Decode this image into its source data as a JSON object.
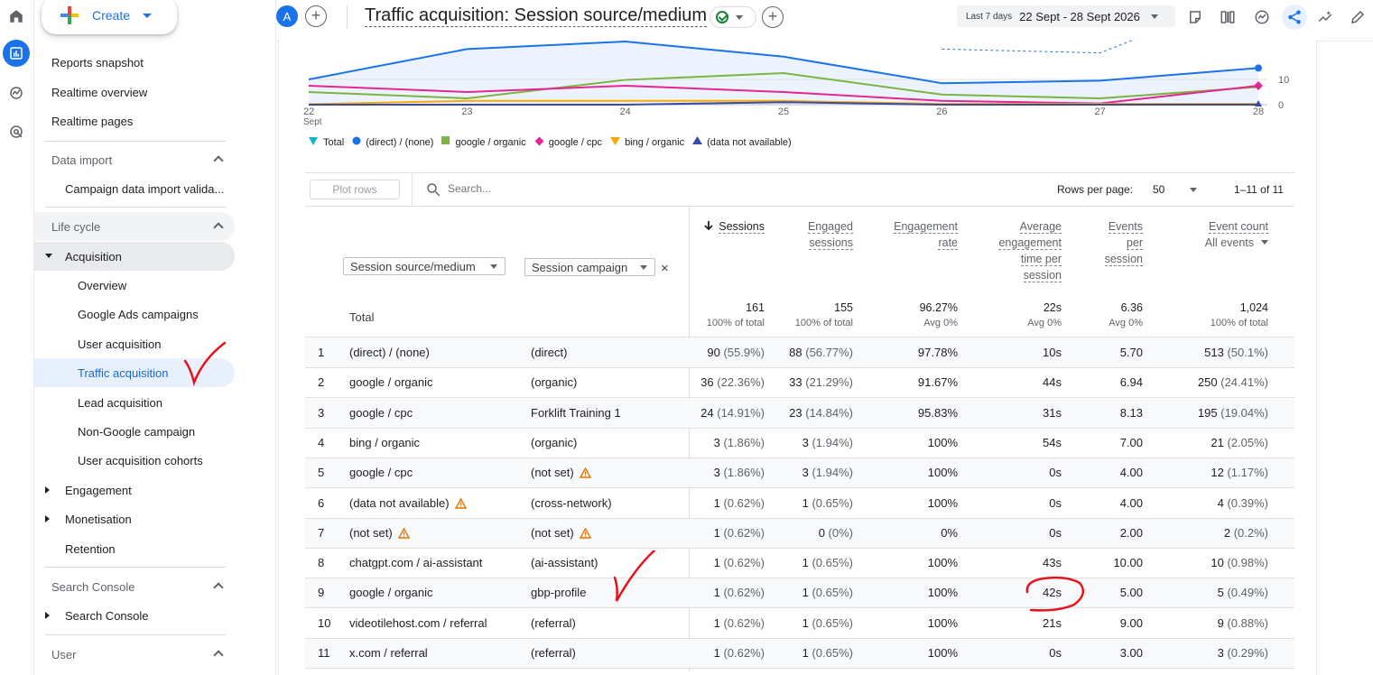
{
  "header": {
    "avatar_letter": "A",
    "title": "Traffic acquisition: Session source/medium",
    "date_small": "Last 7 days",
    "date_range": "22 Sept - 28 Sept 2026"
  },
  "sidebar": {
    "create_label": "Create",
    "items": [
      {
        "label": "Reports snapshot"
      },
      {
        "label": "Realtime overview"
      },
      {
        "label": "Realtime pages"
      },
      {
        "label": "Data import"
      },
      {
        "label": "Campaign data import valida..."
      },
      {
        "label": "Life cycle"
      },
      {
        "label": "Acquisition"
      },
      {
        "label": "Overview"
      },
      {
        "label": "Google Ads campaigns"
      },
      {
        "label": "User acquisition"
      },
      {
        "label": "Traffic acquisition"
      },
      {
        "label": "Lead acquisition"
      },
      {
        "label": "Non-Google campaign"
      },
      {
        "label": "User acquisition cohorts"
      },
      {
        "label": "Engagement"
      },
      {
        "label": "Monetisation"
      },
      {
        "label": "Retention"
      },
      {
        "label": "Search Console"
      },
      {
        "label": "Search Console"
      },
      {
        "label": "User"
      }
    ]
  },
  "chart_data": {
    "type": "line",
    "x": [
      "22 Sept",
      "23",
      "24",
      "25",
      "26",
      "27",
      "28"
    ],
    "x_tick_labels": [
      "22",
      "23",
      "24",
      "25",
      "26",
      "27",
      "28"
    ],
    "x_tick_sub": "Sept",
    "y_ticks": [
      "10",
      "0"
    ],
    "ylim": [
      0,
      40
    ],
    "series": [
      {
        "name": "Total",
        "values": [
          null,
          null,
          null,
          null,
          null,
          null,
          null
        ]
      },
      {
        "name": "(direct) / (none)",
        "color": "#1a73e8",
        "values": [
          10,
          22,
          25,
          19,
          8.5,
          9.5,
          14.5
        ]
      },
      {
        "name": "google / organic",
        "color": "#7cb342",
        "values": [
          5,
          2.5,
          9.8,
          12.5,
          4,
          2.5,
          7
        ]
      },
      {
        "name": "google / cpc",
        "color": "#e52592",
        "values": [
          7.5,
          5,
          7.5,
          5,
          1.5,
          0.5,
          7.5
        ]
      },
      {
        "name": "bing / organic",
        "color": "#f9ab00",
        "values": [
          0.2,
          1.5,
          1.5,
          1.5,
          0.3,
          0.3,
          0.3
        ]
      },
      {
        "name": "(data not available)",
        "color": "#3949ab",
        "values": [
          0,
          0,
          0,
          1,
          0,
          0,
          0
        ]
      }
    ],
    "legend_position": "bottom-left",
    "grid": true
  },
  "toolbar": {
    "plot_rows": "Plot rows",
    "search_placeholder": "Search...",
    "rows_per_page_label": "Rows per page:",
    "rows_per_page_value": "50",
    "pager": "1–11 of 11"
  },
  "table": {
    "dim1": "Session source/medium",
    "dim2": "Session campaign",
    "close": "×",
    "metrics": [
      [
        "Sessions"
      ],
      [
        "Engaged",
        "sessions"
      ],
      [
        "Engagement",
        "rate"
      ],
      [
        "Average",
        "engagement",
        "time per",
        "session"
      ],
      [
        "Events",
        "per",
        "session"
      ],
      [
        "Event count"
      ]
    ],
    "event_count_filter": "All events",
    "total": {
      "label": "Total",
      "values": [
        "161",
        "155",
        "96.27%",
        "22s",
        "6.36",
        "1,024"
      ],
      "subs": [
        "100% of total",
        "100% of total",
        "Avg 0%",
        "Avg 0%",
        "Avg 0%",
        "100% of total"
      ]
    },
    "rows": [
      {
        "n": "1",
        "source": "(direct) / (none)",
        "campaign": "(direct)",
        "sessions": "90",
        "sessions_pct": "(55.9%)",
        "engaged": "88",
        "engaged_pct": "(56.77%)",
        "rate": "97.78%",
        "time": "10s",
        "eps": "5.70",
        "events": "513",
        "events_pct": "(50.1%)"
      },
      {
        "n": "2",
        "source": "google / organic",
        "campaign": "(organic)",
        "sessions": "36",
        "sessions_pct": "(22.36%)",
        "engaged": "33",
        "engaged_pct": "(21.29%)",
        "rate": "91.67%",
        "time": "44s",
        "eps": "6.94",
        "events": "250",
        "events_pct": "(24.41%)"
      },
      {
        "n": "3",
        "source": "google / cpc",
        "campaign": "Forklift Training 1",
        "sessions": "24",
        "sessions_pct": "(14.91%)",
        "engaged": "23",
        "engaged_pct": "(14.84%)",
        "rate": "95.83%",
        "time": "31s",
        "eps": "8.13",
        "events": "195",
        "events_pct": "(19.04%)"
      },
      {
        "n": "4",
        "source": "bing / organic",
        "campaign": "(organic)",
        "sessions": "3",
        "sessions_pct": "(1.86%)",
        "engaged": "3",
        "engaged_pct": "(1.94%)",
        "rate": "100%",
        "time": "54s",
        "eps": "7.00",
        "events": "21",
        "events_pct": "(2.05%)"
      },
      {
        "n": "5",
        "source": "google / cpc",
        "campaign": "(not set)",
        "campaign_warn": true,
        "sessions": "3",
        "sessions_pct": "(1.86%)",
        "engaged": "3",
        "engaged_pct": "(1.94%)",
        "rate": "100%",
        "time": "0s",
        "eps": "4.00",
        "events": "12",
        "events_pct": "(1.17%)"
      },
      {
        "n": "6",
        "source": "(data not available)",
        "source_warn": true,
        "campaign": "(cross-network)",
        "sessions": "1",
        "sessions_pct": "(0.62%)",
        "engaged": "1",
        "engaged_pct": "(0.65%)",
        "rate": "100%",
        "time": "0s",
        "eps": "4.00",
        "events": "4",
        "events_pct": "(0.39%)"
      },
      {
        "n": "7",
        "source": "(not set)",
        "source_warn": true,
        "campaign": "(not set)",
        "campaign_warn": true,
        "sessions": "1",
        "sessions_pct": "(0.62%)",
        "engaged": "0",
        "engaged_pct": "(0%)",
        "rate": "0%",
        "time": "0s",
        "eps": "2.00",
        "events": "2",
        "events_pct": "(0.2%)"
      },
      {
        "n": "8",
        "source": "chatgpt.com / ai-assistant",
        "campaign": "(ai-assistant)",
        "sessions": "1",
        "sessions_pct": "(0.62%)",
        "engaged": "1",
        "engaged_pct": "(0.65%)",
        "rate": "100%",
        "time": "43s",
        "eps": "10.00",
        "events": "10",
        "events_pct": "(0.98%)"
      },
      {
        "n": "9",
        "source": "google / organic",
        "campaign": "gbp-profile",
        "sessions": "1",
        "sessions_pct": "(0.62%)",
        "engaged": "1",
        "engaged_pct": "(0.65%)",
        "rate": "100%",
        "time": "42s",
        "eps": "5.00",
        "events": "5",
        "events_pct": "(0.49%)"
      },
      {
        "n": "10",
        "source": "videotilehost.com / referral",
        "campaign": "(referral)",
        "sessions": "1",
        "sessions_pct": "(0.62%)",
        "engaged": "1",
        "engaged_pct": "(0.65%)",
        "rate": "100%",
        "time": "21s",
        "eps": "9.00",
        "events": "9",
        "events_pct": "(0.88%)"
      },
      {
        "n": "11",
        "source": "x.com / referral",
        "campaign": "(referral)",
        "sessions": "1",
        "sessions_pct": "(0.62%)",
        "engaged": "1",
        "engaged_pct": "(0.65%)",
        "rate": "100%",
        "time": "0s",
        "eps": "3.00",
        "events": "3",
        "events_pct": "(0.29%)"
      }
    ]
  },
  "colors": {
    "accent": "#1a73e8",
    "annotation": "#e8121c"
  }
}
